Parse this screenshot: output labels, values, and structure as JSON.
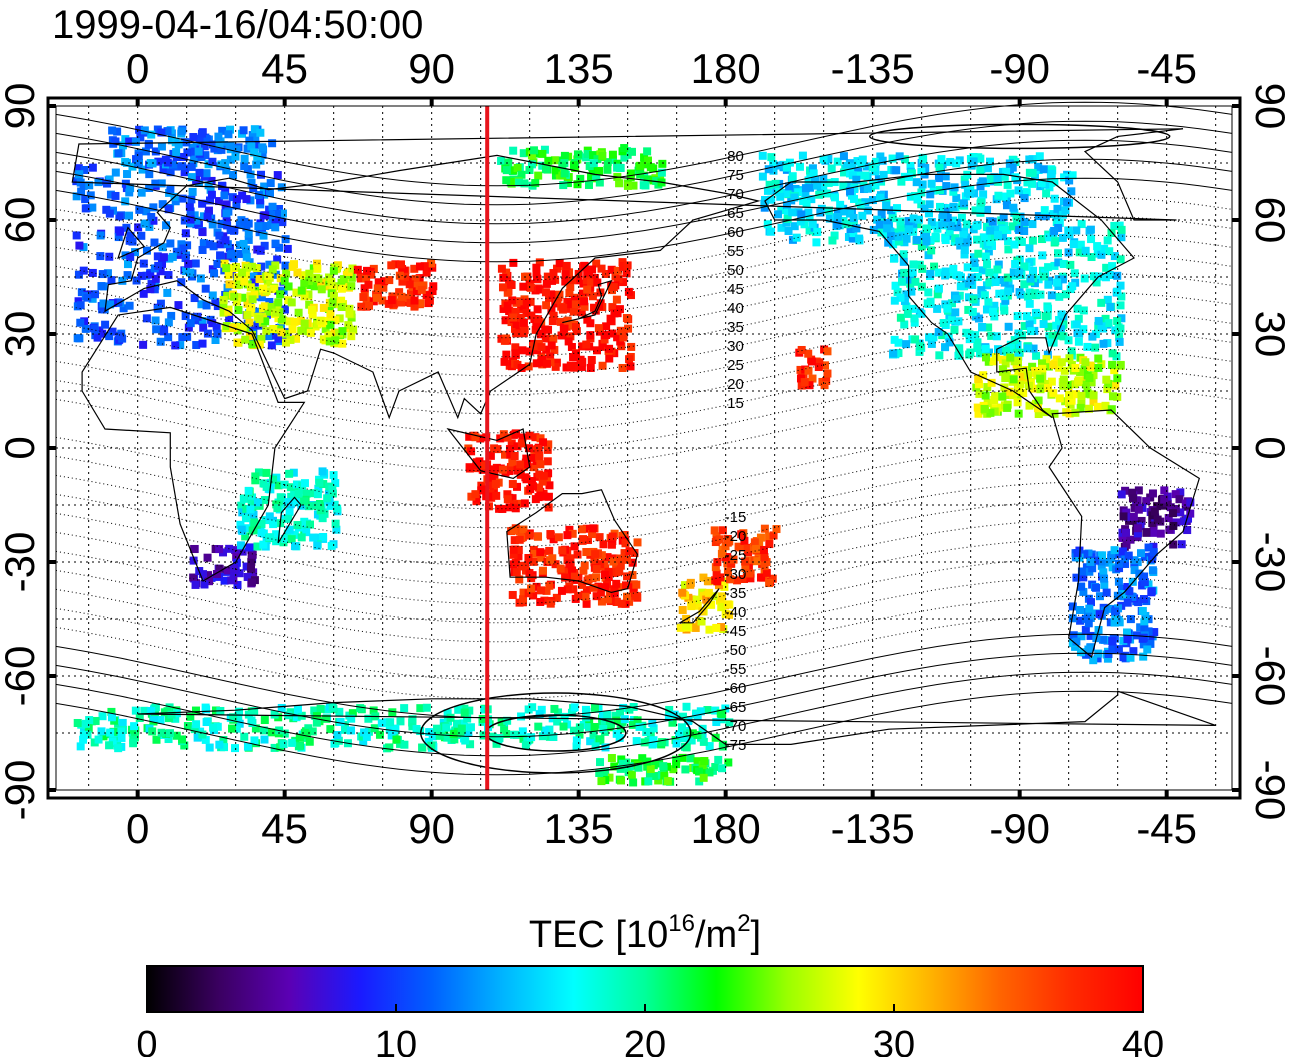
{
  "title": "1999-04-16/04:50:00",
  "top_lon_labels": [
    "0",
    "45",
    "90",
    "135",
    "180",
    "-135",
    "-90",
    "-45"
  ],
  "bottom_lon_labels": [
    "0",
    "45",
    "90",
    "135",
    "180",
    "-135",
    "-90",
    "-45"
  ],
  "left_lat_labels": [
    "90",
    "60",
    "30",
    "0",
    "-30",
    "-60",
    "-90"
  ],
  "right_lat_labels": [
    "90",
    "60",
    "30",
    "0",
    "-30",
    "-60",
    "-90"
  ],
  "lon_ticks": [
    0,
    45,
    90,
    135,
    180,
    -135,
    -90,
    -45
  ],
  "lat_ticks": [
    90,
    60,
    30,
    0,
    -30,
    -60,
    -90
  ],
  "map_extent": {
    "lon_min": -25,
    "lon_max": 335,
    "lat_min": -90,
    "lat_max": 90
  },
  "meridian_marker_lon": 107,
  "marker_color": "#e8141c",
  "mag_lat_labels_north": [
    "80",
    "75",
    "70",
    "65",
    "60",
    "55",
    "50",
    "45",
    "40",
    "35",
    "30",
    "25",
    "20",
    "15"
  ],
  "mag_lat_labels_south": [
    "-15",
    "-20",
    "-25",
    "-30",
    "-35",
    "-40",
    "-45",
    "-50",
    "-55",
    "-60",
    "-65",
    "-70",
    "-75"
  ],
  "colorbar": {
    "title_prefix": "TEC  [10",
    "title_exp": "16",
    "title_mid": "/m",
    "title_exp2": "2",
    "title_suffix": "]",
    "min": 0,
    "max": 40,
    "tick_labels": [
      "0",
      "10",
      "20",
      "30",
      "40"
    ],
    "tick_values": [
      0,
      10,
      20,
      30,
      40
    ],
    "colors": [
      "#000000",
      "#3a0060",
      "#5b00b4",
      "#1a1aff",
      "#0060ff",
      "#00b4ff",
      "#00ffff",
      "#00ff9a",
      "#00ff00",
      "#9aff00",
      "#ffff00",
      "#ffb400",
      "#ff6400",
      "#ff2a00",
      "#ff0000"
    ]
  },
  "tec_regions": [
    {
      "name": "europe",
      "lon": [
        -20,
        45
      ],
      "lat": [
        28,
        75
      ],
      "tec": 11
    },
    {
      "name": "west-asia",
      "lon": [
        25,
        65
      ],
      "lat": [
        28,
        50
      ],
      "tec": 27
    },
    {
      "name": "central-asia",
      "lon": [
        65,
        90
      ],
      "lat": [
        38,
        50
      ],
      "tec": 38
    },
    {
      "name": "east-asia",
      "lon": [
        110,
        150
      ],
      "lat": [
        22,
        50
      ],
      "tec": 39
    },
    {
      "name": "siberia-arctic",
      "lon": [
        110,
        160
      ],
      "lat": [
        70,
        80
      ],
      "tec": 22
    },
    {
      "name": "greenland-arctic",
      "lon": [
        -10,
        40
      ],
      "lat": [
        75,
        85
      ],
      "tec": 12
    },
    {
      "name": "north-america",
      "lon": [
        -130,
        -60
      ],
      "lat": [
        25,
        60
      ],
      "tec": 17
    },
    {
      "name": "canada",
      "lon": [
        -170,
        -75
      ],
      "lat": [
        55,
        78
      ],
      "tec": 16
    },
    {
      "name": "central-america",
      "lon": [
        -105,
        -60
      ],
      "lat": [
        10,
        25
      ],
      "tec": 27
    },
    {
      "name": "hawaii",
      "lon": [
        -160,
        -150
      ],
      "lat": [
        17,
        27
      ],
      "tec": 38
    },
    {
      "name": "australia",
      "lon": [
        113,
        152
      ],
      "lat": [
        -40,
        -20
      ],
      "tec": 38
    },
    {
      "name": "indonesia",
      "lon": [
        100,
        125
      ],
      "lat": [
        -15,
        5
      ],
      "tec": 39
    },
    {
      "name": "new-zealand",
      "lon": [
        165,
        180
      ],
      "lat": [
        -48,
        -33
      ],
      "tec": 30
    },
    {
      "name": "south-pacific",
      "lon": [
        175,
        195
      ],
      "lat": [
        -35,
        -20
      ],
      "tec": 37
    },
    {
      "name": "south-america-north",
      "lon": [
        -60,
        -38
      ],
      "lat": [
        -25,
        -10
      ],
      "tec": 5
    },
    {
      "name": "south-america-south",
      "lon": [
        -75,
        -50
      ],
      "lat": [
        -55,
        -25
      ],
      "tec": 12
    },
    {
      "name": "africa-south",
      "lon": [
        15,
        35
      ],
      "lat": [
        -35,
        -25
      ],
      "tec": 6
    },
    {
      "name": "east-africa",
      "lon": [
        30,
        60
      ],
      "lat": [
        -25,
        -5
      ],
      "tec": 18
    },
    {
      "name": "antarctica-rim",
      "lon": [
        -20,
        180
      ],
      "lat": [
        -78,
        -67
      ],
      "tec": 19
    },
    {
      "name": "antarctica-interior",
      "lon": [
        140,
        180
      ],
      "lat": [
        -87,
        -80
      ],
      "tec": 22
    }
  ]
}
